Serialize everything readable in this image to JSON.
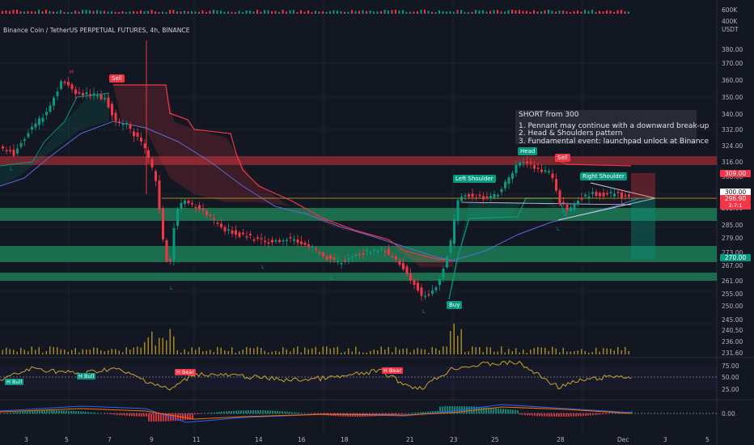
{
  "header": {
    "symbol": "Binance Coin / TetherUS PERPETUAL FUTURES, 4h, BINANCE"
  },
  "volume_scale": [
    "600K",
    "400K"
  ],
  "currency": "USDT",
  "price_scale": [
    "380.00",
    "370.00",
    "360.00",
    "350.00",
    "340.00",
    "332.00",
    "324.00",
    "316.00",
    "308.00",
    "300.00",
    "292.00",
    "285.00",
    "279.00",
    "273.00",
    "267.00",
    "261.00",
    "255.00",
    "250.00",
    "245.00",
    "240.50",
    "236.00",
    "231.60"
  ],
  "price_tags": {
    "stop": "309.00",
    "current": "300.00",
    "last": "296.90",
    "countdown": "2:7:1",
    "target": "270.00"
  },
  "rsi_scale": [
    "75.00",
    "50.00",
    "25.00"
  ],
  "macd_scale": "0.00",
  "x_axis": [
    "3",
    "5",
    "7",
    "9",
    "11",
    "14",
    "16",
    "18",
    "21",
    "23",
    "25",
    "28",
    "Dec",
    "3",
    "5"
  ],
  "note": {
    "title": "SHORT from 300",
    "lines": [
      "1. Pennant may continue with a downward break-up",
      "2. Head & Shoulders pattern",
      "3. Fundamental event: launchpad unlock at Binance"
    ]
  },
  "labels": {
    "sell1": "Sell",
    "sell2": "Sell",
    "buy": "Buy",
    "head": "Head",
    "left_shoulder": "Left Shoulder",
    "right_shoulder": "Right Shoulder",
    "h": "H",
    "l": "L"
  },
  "rsi_tags": {
    "bull1": "H Bull",
    "bull2": "H Bull",
    "bear1": "H Bear",
    "bear2": "H Bear"
  },
  "colors": {
    "background": "#131722",
    "up": "#089981",
    "down": "#f23645",
    "zone_green": "#1e8c5e",
    "zone_red": "#8f2b33",
    "rsi_line": "#c9a227",
    "ma_line": "#5b6bd6"
  }
}
